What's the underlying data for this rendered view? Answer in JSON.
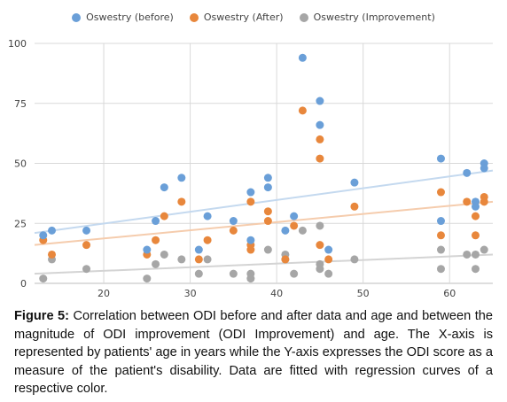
{
  "figure": {
    "caption_label": "Figure 5:",
    "caption_text": "Correlation between ODI before and after data and age and between the magnitude of ODI improvement (ODI Improvement) and age. The X-axis is represented by patients' age in years while the Y-axis expresses the ODI score as a measure of the patient's disability. Data are fitted with regression curves of a respective color."
  },
  "chart_data": {
    "type": "scatter",
    "title": "",
    "xlabel": "",
    "ylabel": "",
    "xlim": [
      12,
      65
    ],
    "ylim": [
      0,
      100
    ],
    "x_ticks": [
      20,
      30,
      40,
      50,
      60
    ],
    "y_ticks": [
      0,
      25,
      50,
      75,
      100
    ],
    "grid": true,
    "legend_position": "top",
    "series": [
      {
        "name": "Oswestry (before)",
        "color": "#6a9fd8",
        "trend_color": "#c4d9ef",
        "trend": [
          [
            12,
            21
          ],
          [
            65,
            47
          ]
        ],
        "points": [
          [
            13,
            20
          ],
          [
            14,
            22
          ],
          [
            18,
            22
          ],
          [
            25,
            14
          ],
          [
            26,
            26
          ],
          [
            27,
            40
          ],
          [
            29,
            44
          ],
          [
            31,
            14
          ],
          [
            32,
            28
          ],
          [
            35,
            26
          ],
          [
            37,
            38
          ],
          [
            37,
            18
          ],
          [
            39,
            44
          ],
          [
            39,
            40
          ],
          [
            41,
            22
          ],
          [
            42,
            28
          ],
          [
            43,
            94
          ],
          [
            45,
            76
          ],
          [
            45,
            66
          ],
          [
            46,
            14
          ],
          [
            49,
            42
          ],
          [
            59,
            52
          ],
          [
            59,
            26
          ],
          [
            62,
            46
          ],
          [
            63,
            34
          ],
          [
            63,
            32
          ],
          [
            64,
            50
          ],
          [
            64,
            48
          ]
        ]
      },
      {
        "name": "Oswestry (After)",
        "color": "#e8873c",
        "trend_color": "#f5ccad",
        "trend": [
          [
            12,
            16
          ],
          [
            65,
            34
          ]
        ],
        "points": [
          [
            13,
            18
          ],
          [
            14,
            12
          ],
          [
            18,
            16
          ],
          [
            25,
            12
          ],
          [
            26,
            18
          ],
          [
            27,
            28
          ],
          [
            29,
            34
          ],
          [
            31,
            10
          ],
          [
            32,
            18
          ],
          [
            35,
            22
          ],
          [
            37,
            34
          ],
          [
            37,
            16
          ],
          [
            37,
            14
          ],
          [
            39,
            30
          ],
          [
            39,
            26
          ],
          [
            41,
            10
          ],
          [
            42,
            24
          ],
          [
            43,
            72
          ],
          [
            45,
            60
          ],
          [
            45,
            52
          ],
          [
            45,
            16
          ],
          [
            46,
            10
          ],
          [
            49,
            32
          ],
          [
            59,
            38
          ],
          [
            59,
            20
          ],
          [
            62,
            34
          ],
          [
            63,
            28
          ],
          [
            63,
            20
          ],
          [
            64,
            36
          ],
          [
            64,
            34
          ]
        ]
      },
      {
        "name": "Oswestry (Improvement)",
        "color": "#a6a6a6",
        "trend_color": "#d4d4d4",
        "trend": [
          [
            12,
            4
          ],
          [
            65,
            12
          ]
        ],
        "points": [
          [
            13,
            2
          ],
          [
            14,
            10
          ],
          [
            18,
            6
          ],
          [
            25,
            2
          ],
          [
            26,
            8
          ],
          [
            27,
            12
          ],
          [
            29,
            10
          ],
          [
            31,
            4
          ],
          [
            32,
            10
          ],
          [
            35,
            4
          ],
          [
            37,
            4
          ],
          [
            37,
            2
          ],
          [
            39,
            14
          ],
          [
            41,
            12
          ],
          [
            41,
            10
          ],
          [
            42,
            4
          ],
          [
            43,
            22
          ],
          [
            45,
            24
          ],
          [
            45,
            8
          ],
          [
            45,
            6
          ],
          [
            46,
            4
          ],
          [
            49,
            10
          ],
          [
            59,
            14
          ],
          [
            59,
            6
          ],
          [
            62,
            12
          ],
          [
            63,
            12
          ],
          [
            63,
            6
          ],
          [
            64,
            14
          ]
        ]
      }
    ]
  }
}
